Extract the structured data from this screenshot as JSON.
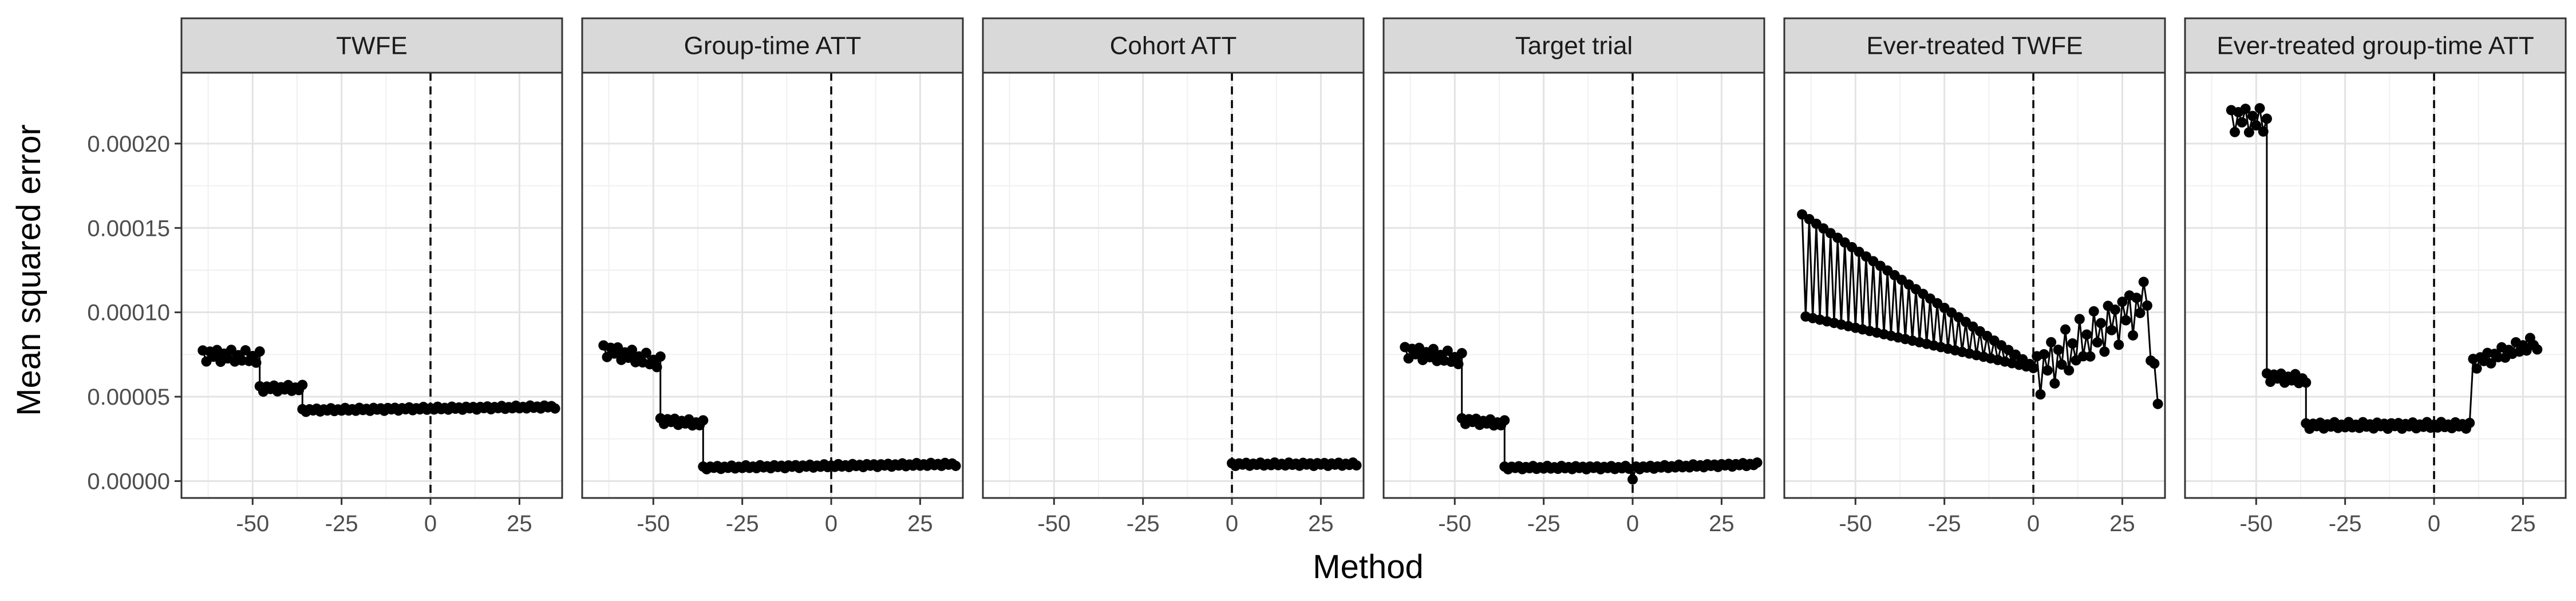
{
  "chart_data": {
    "type": "line",
    "xlabel": "Method",
    "ylabel": "Mean squared error",
    "xlim": [
      -70,
      37
    ],
    "ylim": [
      -1e-05,
      0.000242
    ],
    "x_ticks": [
      -50,
      -25,
      0,
      25
    ],
    "x_tick_labels": [
      "-50",
      "-25",
      "0",
      "25"
    ],
    "y_ticks": [
      0,
      5e-05,
      0.0001,
      0.00015,
      0.0002
    ],
    "y_tick_labels": [
      "0.00000",
      "0.00005",
      "0.00010",
      "0.00015",
      "0.00020"
    ],
    "reference_line": {
      "x": 0,
      "style": "dashed"
    },
    "grid": true,
    "marker": "point",
    "color": "#000000",
    "panels": [
      {
        "name": "TWFE",
        "segments": [
          {
            "x": [
              -64,
              -48
            ],
            "y": [
              7.5e-05,
              7.3e-05
            ],
            "zigzag": 4e-06
          },
          {
            "x": [
              -48,
              -36
            ],
            "y": [
              5.5e-05,
              5.5e-05
            ],
            "zigzag": 2e-06
          },
          {
            "x": [
              -36,
              35
            ],
            "y": [
              4.2e-05,
              4.4e-05
            ],
            "zigzag": 1e-06
          }
        ]
      },
      {
        "name": "Group-time ATT",
        "segments": [
          {
            "x": [
              -64,
              -48
            ],
            "y": [
              7.8e-05,
              7e-05
            ],
            "zigzag": 4e-06
          },
          {
            "x": [
              -48,
              -36
            ],
            "y": [
              3.6e-05,
              3.4e-05
            ],
            "zigzag": 2e-06
          },
          {
            "x": [
              -36,
              35
            ],
            "y": [
              8e-06,
              1e-05
            ],
            "zigzag": 1e-06
          }
        ]
      },
      {
        "name": "Cohort ATT",
        "segments": [
          {
            "x": [
              0,
              35
            ],
            "y": [
              1e-05,
              1e-05
            ],
            "zigzag": 1e-06
          }
        ]
      },
      {
        "name": "Target trial",
        "segments": [
          {
            "x": [
              -64,
              -48
            ],
            "y": [
              7.7e-05,
              7.2e-05
            ],
            "zigzag": 4e-06
          },
          {
            "x": [
              -48,
              -36
            ],
            "y": [
              3.6e-05,
              3.4e-05
            ],
            "zigzag": 2e-06
          },
          {
            "x": [
              -36,
              -1
            ],
            "y": [
              8e-06,
              8e-06
            ],
            "zigzag": 1e-06
          },
          {
            "x": [
              0,
              0
            ],
            "y": [
              1e-06,
              1e-06
            ],
            "zigzag": 0
          },
          {
            "x": [
              1,
              35
            ],
            "y": [
              8e-06,
              1e-05
            ],
            "zigzag": 1e-06
          }
        ]
      },
      {
        "name": "Ever-treated TWFE",
        "segments": [
          {
            "x": [
              -65,
              0
            ],
            "y": [
              0.000158,
              6.8e-05
            ],
            "zigzag": 4e-06,
            "low": [
              9.8e-05,
              6.7e-05
            ]
          },
          {
            "x": [
              1,
              31
            ],
            "y": [
              6.5e-05,
              0.000105
            ],
            "zigzag": 1.5e-05
          },
          {
            "x": [
              32,
              35
            ],
            "y": [
              9.8e-05,
              4.8e-05
            ],
            "zigzag": 1e-05
          }
        ]
      },
      {
        "name": "Ever-treated group-time ATT",
        "segments": [
          {
            "x": [
              -57,
              -47
            ],
            "y": [
              0.000215,
              0.000213
            ],
            "zigzag": 8e-06
          },
          {
            "x": [
              -47,
              -36
            ],
            "y": [
              6.2e-05,
              6e-05
            ],
            "zigzag": 3e-06
          },
          {
            "x": [
              -36,
              10
            ],
            "y": [
              3.3e-05,
              3.3e-05
            ],
            "zigzag": 2e-06
          },
          {
            "x": [
              11,
              27
            ],
            "y": [
              7e-05,
              8.1e-05
            ],
            "zigzag": 4e-06
          },
          {
            "x": [
              28,
              29
            ],
            "y": [
              8e-05,
              7.9e-05
            ],
            "zigzag": 1e-06
          }
        ]
      }
    ]
  }
}
